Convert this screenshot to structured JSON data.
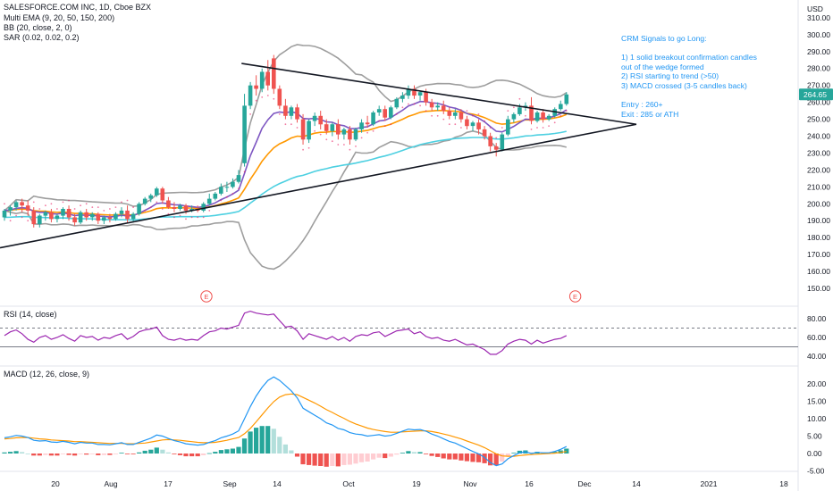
{
  "header": {
    "title": "SALESFORCE.COM INC, 1D, Cboe BZX",
    "indicators": [
      "Multi EMA (9, 20, 50, 150, 200)",
      "BB (20, close, 2, 0)",
      "SAR (0.02, 0.02, 0.2)"
    ],
    "currency": "USD",
    "last_price": "264.65"
  },
  "annotation": {
    "lines": [
      "CRM Signals to go Long:",
      "",
      "1) 1 solid breakout confirmation candles",
      "out of the wedge formed",
      "2) RSI starting to trend (>50)",
      "3) MACD crossed (3-5 candles back)",
      "",
      "Entry : 260+",
      "Exit : 285 or ATH"
    ]
  },
  "panes": {
    "rsi_label": "RSI (14, close)",
    "macd_label": "MACD (12, 26, close, 9)"
  },
  "earnings_marker": "E",
  "x_axis_labels": [
    "20",
    "Aug",
    "17",
    "Sep",
    "14",
    "Oct",
    "19",
    "Nov",
    "16",
    "Dec",
    "14",
    "2021",
    "18"
  ],
  "colors": {
    "up": "#26a69a",
    "down": "#ef5350",
    "bollinger": "#9e9e9e",
    "ema9": "#7e57c2",
    "ema20": "#ff9800",
    "ema50": "#4dd0e1",
    "sar": "#e91e63",
    "rsi": "#9c27b0",
    "macd": "#2196f3",
    "signal": "#ff9800",
    "annotation": "#2196f3"
  },
  "chart_data": [
    {
      "type": "candlestick",
      "yaxis_ticks": [
        "310.00",
        "300.00",
        "290.00",
        "280.00",
        "270.00",
        "260.00",
        "250.00",
        "240.00",
        "230.00",
        "220.00",
        "210.00",
        "200.00",
        "190.00",
        "180.00",
        "170.00",
        "160.00",
        "150.00"
      ],
      "ylim": [
        145,
        312
      ],
      "price_badge": 264.65,
      "candles": [
        {
          "o": 192,
          "h": 197,
          "c": 196,
          "l": 190
        },
        {
          "o": 196,
          "h": 199,
          "c": 198,
          "l": 193
        },
        {
          "o": 198,
          "h": 202,
          "c": 201,
          "l": 196
        },
        {
          "o": 201,
          "h": 203,
          "c": 199,
          "l": 195
        },
        {
          "o": 199,
          "h": 202,
          "c": 196,
          "l": 193
        },
        {
          "o": 196,
          "h": 198,
          "c": 188,
          "l": 186
        },
        {
          "o": 188,
          "h": 194,
          "c": 193,
          "l": 186
        },
        {
          "o": 193,
          "h": 196,
          "c": 195,
          "l": 190
        },
        {
          "o": 195,
          "h": 197,
          "c": 191,
          "l": 189
        },
        {
          "o": 191,
          "h": 194,
          "c": 193,
          "l": 189
        },
        {
          "o": 193,
          "h": 198,
          "c": 197,
          "l": 191
        },
        {
          "o": 197,
          "h": 199,
          "c": 192,
          "l": 190
        },
        {
          "o": 192,
          "h": 194,
          "c": 189,
          "l": 187
        },
        {
          "o": 189,
          "h": 196,
          "c": 195,
          "l": 188
        },
        {
          "o": 195,
          "h": 197,
          "c": 192,
          "l": 190
        },
        {
          "o": 192,
          "h": 195,
          "c": 194,
          "l": 190
        },
        {
          "o": 194,
          "h": 195,
          "c": 190,
          "l": 188
        },
        {
          "o": 190,
          "h": 193,
          "c": 192,
          "l": 188
        },
        {
          "o": 192,
          "h": 194,
          "c": 191,
          "l": 189
        },
        {
          "o": 191,
          "h": 195,
          "c": 194,
          "l": 190
        },
        {
          "o": 194,
          "h": 198,
          "c": 196,
          "l": 192
        },
        {
          "o": 196,
          "h": 199,
          "c": 191,
          "l": 189
        },
        {
          "o": 191,
          "h": 195,
          "c": 194,
          "l": 189
        },
        {
          "o": 194,
          "h": 201,
          "c": 200,
          "l": 193
        },
        {
          "o": 200,
          "h": 204,
          "c": 203,
          "l": 199
        },
        {
          "o": 203,
          "h": 206,
          "c": 205,
          "l": 201
        },
        {
          "o": 205,
          "h": 210,
          "c": 209,
          "l": 204
        },
        {
          "o": 209,
          "h": 210,
          "c": 202,
          "l": 200
        },
        {
          "o": 202,
          "h": 204,
          "c": 198,
          "l": 197
        },
        {
          "o": 198,
          "h": 201,
          "c": 197,
          "l": 195
        },
        {
          "o": 197,
          "h": 200,
          "c": 199,
          "l": 196
        },
        {
          "o": 199,
          "h": 200,
          "c": 196,
          "l": 194
        },
        {
          "o": 196,
          "h": 199,
          "c": 197,
          "l": 195
        },
        {
          "o": 197,
          "h": 199,
          "c": 196,
          "l": 195
        },
        {
          "o": 196,
          "h": 201,
          "c": 200,
          "l": 195
        },
        {
          "o": 200,
          "h": 206,
          "c": 203,
          "l": 199
        },
        {
          "o": 203,
          "h": 207,
          "c": 206,
          "l": 202
        },
        {
          "o": 206,
          "h": 212,
          "c": 210,
          "l": 205
        },
        {
          "o": 210,
          "h": 213,
          "c": 210,
          "l": 207
        },
        {
          "o": 210,
          "h": 215,
          "c": 213,
          "l": 209
        },
        {
          "o": 213,
          "h": 220,
          "c": 217,
          "l": 212
        },
        {
          "o": 224,
          "h": 265,
          "c": 258,
          "l": 222
        },
        {
          "o": 258,
          "h": 272,
          "c": 270,
          "l": 256
        },
        {
          "o": 270,
          "h": 276,
          "c": 268,
          "l": 264
        },
        {
          "o": 268,
          "h": 280,
          "c": 278,
          "l": 266
        },
        {
          "o": 278,
          "h": 285,
          "c": 270,
          "l": 267
        },
        {
          "o": 286,
          "h": 288,
          "c": 268,
          "l": 265
        },
        {
          "o": 268,
          "h": 270,
          "c": 258,
          "l": 256
        },
        {
          "o": 258,
          "h": 262,
          "c": 252,
          "l": 250
        },
        {
          "o": 252,
          "h": 258,
          "c": 257,
          "l": 250
        },
        {
          "o": 257,
          "h": 259,
          "c": 250,
          "l": 248
        },
        {
          "o": 250,
          "h": 253,
          "c": 238,
          "l": 235
        },
        {
          "o": 238,
          "h": 250,
          "c": 249,
          "l": 236
        },
        {
          "o": 249,
          "h": 254,
          "c": 252,
          "l": 246
        },
        {
          "o": 252,
          "h": 255,
          "c": 247,
          "l": 244
        },
        {
          "o": 247,
          "h": 250,
          "c": 243,
          "l": 241
        },
        {
          "o": 243,
          "h": 248,
          "c": 247,
          "l": 240
        },
        {
          "o": 247,
          "h": 250,
          "c": 241,
          "l": 238
        },
        {
          "o": 241,
          "h": 245,
          "c": 244,
          "l": 238
        },
        {
          "o": 244,
          "h": 246,
          "c": 238,
          "l": 235
        },
        {
          "o": 238,
          "h": 245,
          "c": 244,
          "l": 237
        },
        {
          "o": 244,
          "h": 250,
          "c": 248,
          "l": 242
        },
        {
          "o": 248,
          "h": 252,
          "c": 247,
          "l": 245
        },
        {
          "o": 247,
          "h": 255,
          "c": 254,
          "l": 246
        },
        {
          "o": 254,
          "h": 258,
          "c": 256,
          "l": 252
        },
        {
          "o": 256,
          "h": 258,
          "c": 251,
          "l": 249
        },
        {
          "o": 251,
          "h": 258,
          "c": 257,
          "l": 250
        },
        {
          "o": 257,
          "h": 263,
          "c": 262,
          "l": 256
        },
        {
          "o": 262,
          "h": 266,
          "c": 264,
          "l": 260
        },
        {
          "o": 264,
          "h": 270,
          "c": 268,
          "l": 262
        },
        {
          "o": 268,
          "h": 270,
          "c": 264,
          "l": 262
        },
        {
          "o": 264,
          "h": 267,
          "c": 266,
          "l": 261
        },
        {
          "o": 266,
          "h": 268,
          "c": 260,
          "l": 258
        },
        {
          "o": 260,
          "h": 262,
          "c": 257,
          "l": 255
        },
        {
          "o": 257,
          "h": 260,
          "c": 258,
          "l": 255
        },
        {
          "o": 258,
          "h": 261,
          "c": 255,
          "l": 253
        },
        {
          "o": 255,
          "h": 257,
          "c": 252,
          "l": 250
        },
        {
          "o": 252,
          "h": 256,
          "c": 254,
          "l": 250
        },
        {
          "o": 254,
          "h": 256,
          "c": 250,
          "l": 248
        },
        {
          "o": 250,
          "h": 252,
          "c": 246,
          "l": 244
        },
        {
          "o": 246,
          "h": 249,
          "c": 248,
          "l": 243
        },
        {
          "o": 248,
          "h": 250,
          "c": 244,
          "l": 241
        },
        {
          "o": 244,
          "h": 246,
          "c": 240,
          "l": 238
        },
        {
          "o": 240,
          "h": 242,
          "c": 234,
          "l": 231
        },
        {
          "o": 234,
          "h": 236,
          "c": 232,
          "l": 228
        },
        {
          "o": 232,
          "h": 242,
          "c": 241,
          "l": 231
        },
        {
          "o": 241,
          "h": 252,
          "c": 250,
          "l": 240
        },
        {
          "o": 250,
          "h": 254,
          "c": 253,
          "l": 248
        },
        {
          "o": 253,
          "h": 259,
          "c": 257,
          "l": 252
        },
        {
          "o": 257,
          "h": 260,
          "c": 258,
          "l": 255
        },
        {
          "o": 258,
          "h": 263,
          "c": 249,
          "l": 247
        },
        {
          "o": 249,
          "h": 255,
          "c": 254,
          "l": 248
        },
        {
          "o": 254,
          "h": 256,
          "c": 250,
          "l": 248
        },
        {
          "o": 250,
          "h": 253,
          "c": 252,
          "l": 249
        },
        {
          "o": 252,
          "h": 257,
          "c": 256,
          "l": 251
        },
        {
          "o": 256,
          "h": 261,
          "c": 259,
          "l": 255
        },
        {
          "o": 259,
          "h": 266,
          "c": 264.65,
          "l": 258
        }
      ]
    },
    {
      "type": "line",
      "title": "RSI (14, close)",
      "yaxis_ticks": [
        "80.00",
        "60.00",
        "40.00"
      ],
      "ylim": [
        32,
        90
      ],
      "reference_lines": [
        70,
        50
      ],
      "values": [
        62,
        66,
        68,
        64,
        58,
        55,
        60,
        62,
        58,
        60,
        63,
        59,
        56,
        62,
        60,
        61,
        57,
        60,
        59,
        62,
        64,
        58,
        61,
        66,
        68,
        69,
        71,
        62,
        58,
        57,
        59,
        57,
        58,
        57,
        62,
        66,
        67,
        70,
        69,
        71,
        73,
        86,
        88,
        86,
        85,
        84,
        85,
        78,
        71,
        72,
        67,
        58,
        64,
        62,
        60,
        58,
        61,
        57,
        60,
        56,
        61,
        63,
        62,
        65,
        66,
        61,
        64,
        67,
        68,
        69,
        64,
        66,
        61,
        59,
        60,
        57,
        56,
        58,
        55,
        52,
        53,
        50,
        47,
        42,
        42,
        46,
        53,
        56,
        58,
        57,
        53,
        57,
        54,
        56,
        58,
        59,
        62
      ]
    },
    {
      "type": "line",
      "title": "MACD (12, 26, close, 9)",
      "yaxis_ticks": [
        "20.00",
        "15.00",
        "10.00",
        "5.00",
        "0.00",
        "-5.00"
      ],
      "ylim": [
        -7,
        23
      ],
      "series": [
        {
          "values": [
            4.5,
            4.8,
            5.2,
            5.0,
            4.6,
            3.8,
            3.6,
            3.7,
            3.3,
            3.2,
            3.5,
            3.2,
            2.8,
            3.2,
            3.0,
            3.0,
            2.6,
            2.6,
            2.5,
            2.8,
            3.1,
            2.6,
            2.6,
            3.2,
            3.8,
            4.4,
            5.3,
            5.0,
            4.3,
            3.7,
            3.3,
            2.8,
            2.6,
            2.4,
            2.6,
            3.2,
            3.7,
            4.5,
            5.0,
            5.6,
            6.5,
            10.0,
            13.5,
            16.5,
            19.0,
            21.0,
            22.0,
            21.0,
            19.5,
            18.0,
            16.0,
            13.0,
            12.0,
            11.0,
            10.0,
            8.8,
            8.2,
            7.2,
            6.8,
            6.0,
            5.6,
            5.4,
            5.0,
            5.2,
            5.4,
            5.0,
            5.2,
            5.8,
            6.4,
            7.0,
            6.8,
            6.9,
            6.4,
            5.6,
            5.0,
            4.2,
            3.5,
            3.0,
            2.2,
            1.4,
            0.6,
            -0.1,
            -1.1,
            -2.6,
            -3.5,
            -3.0,
            -1.5,
            -0.6,
            0.2,
            0.5,
            0.0,
            0.3,
            0.2,
            0.2,
            0.6,
            1.2,
            2.0
          ]
        },
        {
          "values": [
            4.2,
            4.3,
            4.5,
            4.6,
            4.6,
            4.4,
            4.2,
            4.1,
            3.9,
            3.8,
            3.7,
            3.6,
            3.4,
            3.4,
            3.3,
            3.2,
            3.1,
            3.0,
            2.9,
            2.9,
            2.9,
            2.8,
            2.8,
            2.9,
            3.0,
            3.3,
            3.6,
            3.9,
            4.0,
            3.9,
            3.8,
            3.6,
            3.4,
            3.2,
            3.1,
            3.1,
            3.2,
            3.5,
            3.8,
            4.2,
            4.6,
            5.7,
            7.2,
            9.1,
            11.1,
            13.1,
            14.9,
            16.2,
            16.9,
            17.1,
            16.9,
            16.1,
            15.3,
            14.5,
            13.6,
            12.6,
            11.8,
            10.9,
            10.1,
            9.2,
            8.5,
            7.9,
            7.3,
            6.9,
            6.6,
            6.3,
            6.1,
            6.1,
            6.2,
            6.3,
            6.4,
            6.5,
            6.5,
            6.3,
            6.0,
            5.6,
            5.2,
            4.7,
            4.2,
            3.6,
            3.0,
            2.4,
            1.7,
            0.8,
            -0.1,
            -0.7,
            -0.8,
            -0.8,
            -0.6,
            -0.4,
            -0.3,
            -0.2,
            -0.1,
            0.0,
            0.1,
            0.3,
            0.6
          ]
        }
      ],
      "histogram": [
        0.3,
        0.5,
        0.7,
        0.4,
        0.0,
        -0.6,
        -0.6,
        -0.4,
        -0.6,
        -0.6,
        -0.2,
        -0.4,
        -0.6,
        -0.2,
        -0.3,
        -0.2,
        -0.5,
        -0.4,
        -0.4,
        -0.1,
        0.2,
        -0.2,
        -0.2,
        0.3,
        0.8,
        1.1,
        1.7,
        1.1,
        0.3,
        -0.2,
        -0.5,
        -0.8,
        -0.8,
        -0.8,
        -0.5,
        0.1,
        0.5,
        1.0,
        1.2,
        1.4,
        1.9,
        4.3,
        6.3,
        7.4,
        7.9,
        7.9,
        7.1,
        4.8,
        2.6,
        0.9,
        -0.9,
        -3.1,
        -3.3,
        -3.5,
        -3.6,
        -3.8,
        -3.6,
        -3.7,
        -3.3,
        -3.2,
        -2.9,
        -2.5,
        -2.3,
        -1.7,
        -1.2,
        -1.3,
        -0.9,
        -0.3,
        0.2,
        0.7,
        0.4,
        0.4,
        -0.1,
        -0.7,
        -1.0,
        -1.4,
        -1.7,
        -1.7,
        -2.0,
        -2.2,
        -2.4,
        -2.5,
        -2.8,
        -3.4,
        -3.4,
        -2.3,
        -0.7,
        0.2,
        0.8,
        0.9,
        0.3,
        0.5,
        0.3,
        0.2,
        0.5,
        0.9,
        1.4
      ]
    }
  ]
}
